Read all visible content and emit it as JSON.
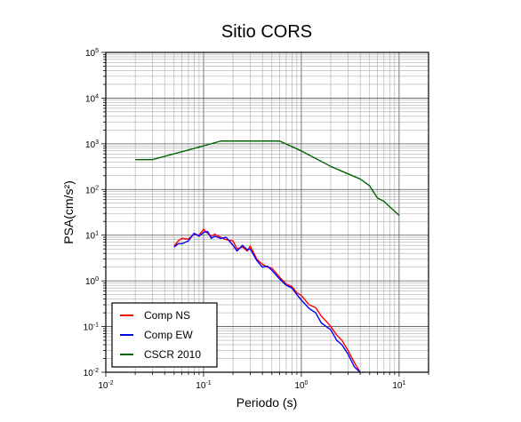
{
  "chart_data": {
    "type": "line",
    "title": "Sitio CORS",
    "xlabel": "Periodo (s)",
    "ylabel": "PSA(cm/s²)",
    "xscale": "log",
    "yscale": "log",
    "xlim": [
      0.01,
      20
    ],
    "ylim": [
      0.01,
      100000
    ],
    "grid": true,
    "legend_position": "bottom-left",
    "x_ticks": [
      {
        "base": "10",
        "exp": "-2"
      },
      {
        "base": "10",
        "exp": "-1"
      },
      {
        "base": "10",
        "exp": "0"
      },
      {
        "base": "10",
        "exp": "1"
      }
    ],
    "y_ticks": [
      {
        "base": "10",
        "exp": "-2"
      },
      {
        "base": "10",
        "exp": "-1"
      },
      {
        "base": "10",
        "exp": "0"
      },
      {
        "base": "10",
        "exp": "1"
      },
      {
        "base": "10",
        "exp": "2"
      },
      {
        "base": "10",
        "exp": "3"
      },
      {
        "base": "10",
        "exp": "4"
      },
      {
        "base": "10",
        "exp": "5"
      }
    ],
    "series": [
      {
        "name": "Comp NS",
        "color": "#ff0000",
        "x": [
          0.05,
          0.055,
          0.06,
          0.07,
          0.08,
          0.09,
          0.1,
          0.11,
          0.12,
          0.13,
          0.15,
          0.17,
          0.2,
          0.22,
          0.25,
          0.28,
          0.3,
          0.35,
          0.4,
          0.45,
          0.5,
          0.6,
          0.7,
          0.8,
          0.9,
          1.0,
          1.2,
          1.4,
          1.6,
          1.8,
          2.0,
          2.3,
          2.6,
          3.0,
          3.5,
          4.0
        ],
        "y": [
          5.8,
          7.5,
          8.5,
          8.2,
          10.5,
          10.0,
          13.5,
          11.0,
          9.5,
          10.5,
          9.0,
          8.0,
          7.5,
          5.0,
          5.5,
          4.5,
          5.8,
          3.0,
          2.3,
          2.0,
          1.9,
          1.2,
          0.85,
          0.75,
          0.55,
          0.48,
          0.3,
          0.26,
          0.17,
          0.13,
          0.1,
          0.065,
          0.05,
          0.03,
          0.016,
          0.01
        ]
      },
      {
        "name": "Comp EW",
        "color": "#0000ff",
        "x": [
          0.05,
          0.055,
          0.06,
          0.07,
          0.08,
          0.09,
          0.1,
          0.11,
          0.12,
          0.13,
          0.15,
          0.17,
          0.2,
          0.22,
          0.25,
          0.28,
          0.3,
          0.35,
          0.4,
          0.45,
          0.5,
          0.6,
          0.7,
          0.8,
          0.9,
          1.0,
          1.2,
          1.4,
          1.6,
          1.8,
          2.0,
          2.3,
          2.6,
          3.0,
          3.5,
          4.0
        ],
        "y": [
          5.5,
          6.5,
          6.5,
          7.5,
          11.0,
          9.5,
          11.5,
          12.0,
          8.5,
          9.5,
          8.5,
          9.0,
          6.0,
          4.5,
          6.0,
          4.8,
          5.0,
          2.8,
          2.0,
          2.1,
          1.7,
          1.1,
          0.8,
          0.7,
          0.5,
          0.38,
          0.25,
          0.2,
          0.12,
          0.1,
          0.085,
          0.05,
          0.04,
          0.025,
          0.013,
          0.01
        ]
      },
      {
        "name": "CSCR 2010",
        "color": "#006400",
        "x": [
          0.02,
          0.03,
          0.1,
          0.15,
          0.3,
          0.6,
          1.0,
          2.0,
          3.0,
          4.0,
          5.0,
          6.0,
          7.0,
          8.0,
          10.0
        ],
        "y": [
          450,
          450,
          900,
          1150,
          1150,
          1150,
          700,
          320,
          220,
          170,
          120,
          65,
          55,
          42,
          27
        ]
      }
    ]
  }
}
